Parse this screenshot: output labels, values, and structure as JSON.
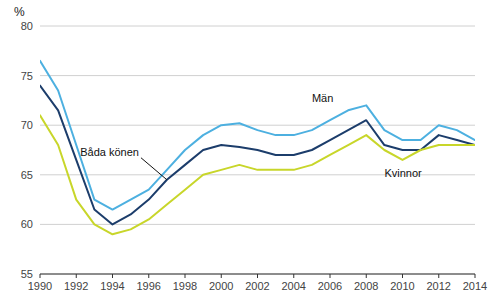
{
  "chart_data": {
    "type": "line",
    "ylabel": "%",
    "x": [
      1990,
      1991,
      1992,
      1993,
      1994,
      1995,
      1996,
      1997,
      1998,
      1999,
      2000,
      2001,
      2002,
      2003,
      2004,
      2005,
      2006,
      2007,
      2008,
      2009,
      2010,
      2011,
      2012,
      2013,
      2014
    ],
    "series": [
      {
        "name": "Män",
        "color": "#4db0e0",
        "values": [
          76.5,
          73.5,
          68.0,
          62.5,
          61.5,
          62.5,
          63.5,
          65.5,
          67.5,
          69.0,
          70.0,
          70.2,
          69.5,
          69.0,
          69.0,
          69.5,
          70.5,
          71.5,
          72.0,
          69.5,
          68.5,
          68.5,
          70.0,
          69.5,
          68.5
        ]
      },
      {
        "name": "Båda könen",
        "color": "#1c3d6b",
        "values": [
          74.0,
          71.5,
          66.5,
          61.5,
          60.0,
          61.0,
          62.5,
          64.5,
          66.0,
          67.5,
          68.0,
          67.8,
          67.5,
          67.0,
          67.0,
          67.5,
          68.5,
          69.5,
          70.5,
          68.0,
          67.5,
          67.5,
          69.0,
          68.5,
          68.0
        ]
      },
      {
        "name": "Kvinnor",
        "color": "#c8d62a",
        "values": [
          71.0,
          68.0,
          62.5,
          60.0,
          59.0,
          59.5,
          60.5,
          62.0,
          63.5,
          65.0,
          65.5,
          66.0,
          65.5,
          65.5,
          65.5,
          66.0,
          67.0,
          68.0,
          69.0,
          67.5,
          66.5,
          67.5,
          68.0,
          68.0,
          68.0
        ]
      }
    ],
    "xlim": [
      1990,
      2014
    ],
    "ylim": [
      55,
      80
    ],
    "xticks": [
      1990,
      1992,
      1994,
      1996,
      1998,
      2000,
      2002,
      2004,
      2006,
      2008,
      2010,
      2012,
      2014
    ],
    "yticks": [
      55,
      60,
      65,
      70,
      75,
      80
    ],
    "grid": true
  }
}
